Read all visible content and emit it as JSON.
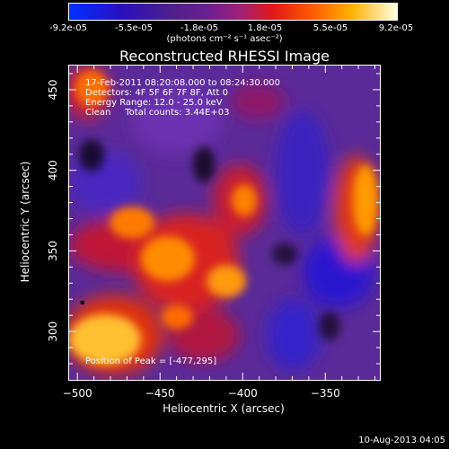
{
  "colorbar": {
    "ticks": [
      "-9.2e-05",
      "-5.5e-05",
      "-1.8e-05",
      "1.8e-05",
      "5.5e-05",
      "9.2e-05"
    ],
    "unit": "(photons cm⁻² s⁻¹ asec⁻²)"
  },
  "title": "Reconstructed RHESSI Image",
  "info": {
    "time": "17-Feb-2011 08:20:08.000 to 08:24:30.000",
    "detectors": "Detectors: 4F 5F 6F 7F 8F, Att 0",
    "energy": "Energy Range: 12.0 - 25.0 keV",
    "clean": "Clean     Total counts: 3.44E+03"
  },
  "peak": "Position of Peak = [-477,295]",
  "footer_date": "10-Aug-2013 04:05",
  "chart_data": {
    "type": "heatmap",
    "title": "Reconstructed RHESSI Image",
    "xlabel": "Heliocentric X (arcsec)",
    "ylabel": "Heliocentric Y (arcsec)",
    "xlim": [
      -505,
      -317
    ],
    "ylim": [
      270,
      465
    ],
    "x_ticks": [
      -500,
      -450,
      -400,
      -350
    ],
    "y_ticks": [
      300,
      350,
      400,
      450
    ],
    "colorbar_range": [
      -9.2e-05,
      9.2e-05
    ],
    "peak_position": [
      -477,
      295
    ]
  }
}
